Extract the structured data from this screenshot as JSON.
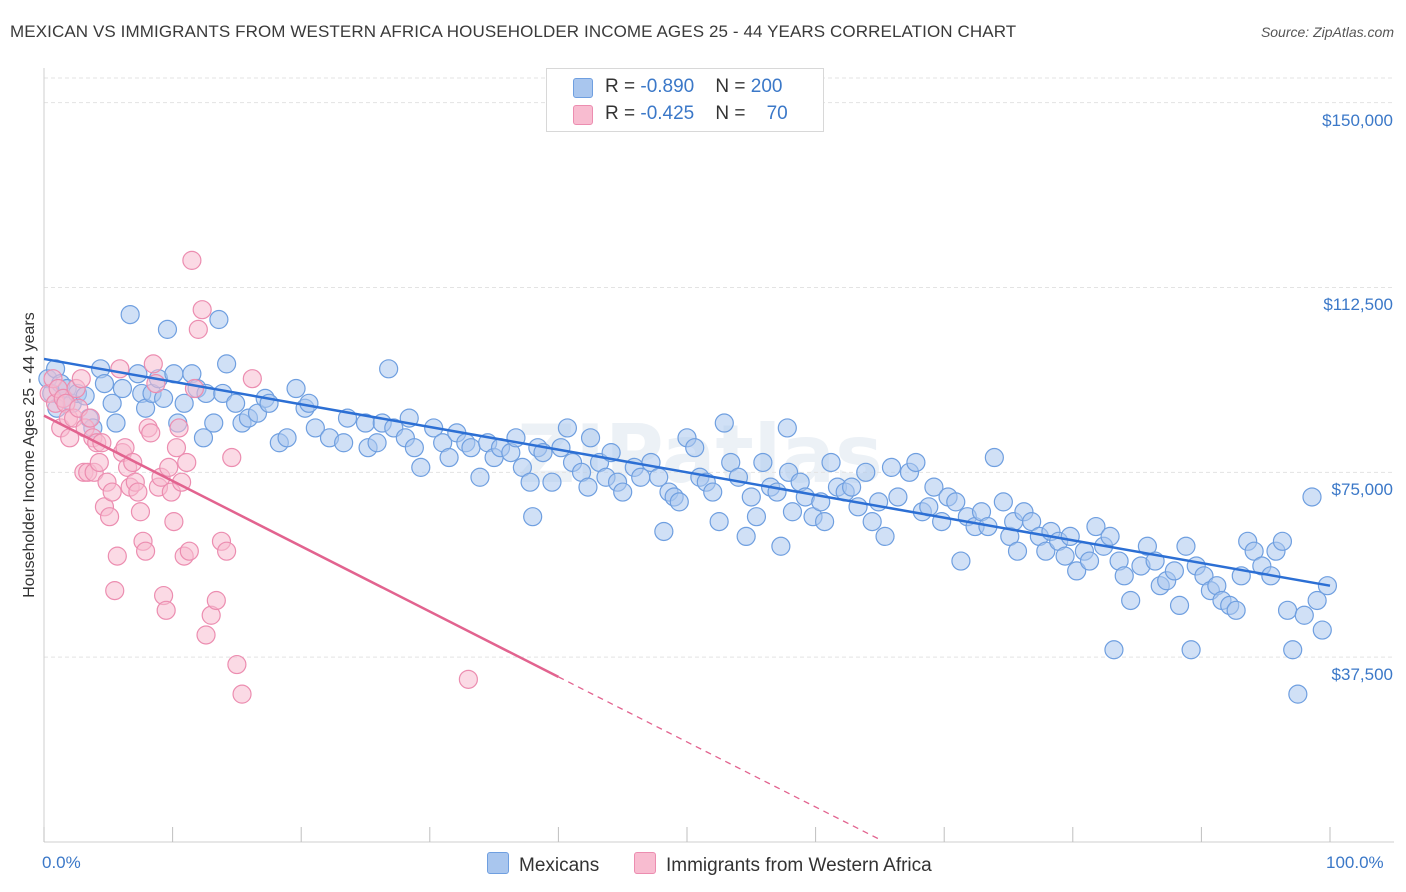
{
  "title": "MEXICAN VS IMMIGRANTS FROM WESTERN AFRICA HOUSEHOLDER INCOME AGES 25 - 44 YEARS CORRELATION CHART",
  "source": "Source: ZipAtlas.com",
  "watermark": "ZIPatlas",
  "colors": {
    "blue_fill": "#a9c6ee",
    "blue_stroke": "#6f9fe0",
    "blue_line": "#2c6fd4",
    "pink_fill": "#f8bcd0",
    "pink_stroke": "#ec8db0",
    "pink_line": "#e2638f",
    "tick_text": "#3b78c8",
    "grid": "#e3e3e3"
  },
  "legend": {
    "rows": [
      {
        "r_label": "R = ",
        "r_value": "-0.890",
        "n_label": "N = ",
        "n_value": "200"
      },
      {
        "r_label": "R = ",
        "r_value": "-0.425",
        "n_label": "N = ",
        "n_value": "70"
      }
    ]
  },
  "bottom_legend": {
    "mexicans": "Mexicans",
    "immigrants": "Immigrants from Western Africa"
  },
  "chart_data": {
    "type": "scatter",
    "title": "MEXICAN VS IMMIGRANTS FROM WESTERN AFRICA HOUSEHOLDER INCOME AGES 25 - 44 YEARS CORRELATION CHART",
    "xlabel": "",
    "ylabel": "Householder Income Ages 25 - 44 years",
    "xlim": [
      0,
      100
    ],
    "ylim": [
      0,
      155000
    ],
    "x_tick_labels": [
      "0.0%",
      "100.0%"
    ],
    "y_ticks": [
      37500,
      75000,
      112500,
      150000
    ],
    "y_tick_labels": [
      "$37,500",
      "$75,000",
      "$112,500",
      "$150,000"
    ],
    "grid": true,
    "legend_position": "top-center",
    "series": [
      {
        "name": "Mexicans",
        "trend": {
          "x": [
            0,
            100
          ],
          "y": [
            98000,
            52000
          ]
        },
        "points": [
          [
            0.3,
            94000
          ],
          [
            0.6,
            91000
          ],
          [
            0.9,
            96000
          ],
          [
            1.0,
            88000
          ],
          [
            1.3,
            93000
          ],
          [
            1.5,
            90000
          ],
          [
            1.8,
            92000
          ],
          [
            2.2,
            89000
          ],
          [
            2.6,
            91000
          ],
          [
            3.2,
            90500
          ],
          [
            3.5,
            86000
          ],
          [
            3.8,
            84000
          ],
          [
            4.4,
            96000
          ],
          [
            4.7,
            93000
          ],
          [
            5.3,
            89000
          ],
          [
            5.6,
            85000
          ],
          [
            6.1,
            92000
          ],
          [
            6.7,
            107000
          ],
          [
            7.3,
            95000
          ],
          [
            7.6,
            91000
          ],
          [
            7.9,
            88000
          ],
          [
            8.4,
            91000
          ],
          [
            8.9,
            94000
          ],
          [
            9.3,
            90000
          ],
          [
            9.6,
            104000
          ],
          [
            10.1,
            95000
          ],
          [
            10.4,
            85000
          ],
          [
            10.9,
            89000
          ],
          [
            11.5,
            95000
          ],
          [
            11.9,
            92000
          ],
          [
            12.4,
            82000
          ],
          [
            12.6,
            91000
          ],
          [
            13.2,
            85000
          ],
          [
            13.6,
            106000
          ],
          [
            13.9,
            91000
          ],
          [
            14.2,
            97000
          ],
          [
            14.9,
            89000
          ],
          [
            15.4,
            85000
          ],
          [
            15.9,
            86000
          ],
          [
            16.6,
            87000
          ],
          [
            17.2,
            90000
          ],
          [
            17.5,
            89000
          ],
          [
            18.3,
            81000
          ],
          [
            18.9,
            82000
          ],
          [
            19.6,
            92000
          ],
          [
            20.3,
            88000
          ],
          [
            20.6,
            89000
          ],
          [
            21.1,
            84000
          ],
          [
            22.2,
            82000
          ],
          [
            23.3,
            81000
          ],
          [
            23.6,
            86000
          ],
          [
            25.0,
            85000
          ],
          [
            25.2,
            80000
          ],
          [
            25.9,
            81000
          ],
          [
            26.3,
            85000
          ],
          [
            26.8,
            96000
          ],
          [
            27.2,
            84000
          ],
          [
            28.1,
            82000
          ],
          [
            28.4,
            86000
          ],
          [
            28.8,
            80000
          ],
          [
            29.3,
            76000
          ],
          [
            30.3,
            84000
          ],
          [
            31.0,
            81000
          ],
          [
            31.5,
            78000
          ],
          [
            32.1,
            83000
          ],
          [
            32.8,
            81000
          ],
          [
            33.2,
            80000
          ],
          [
            33.9,
            74000
          ],
          [
            34.5,
            81000
          ],
          [
            35.0,
            78000
          ],
          [
            35.5,
            80000
          ],
          [
            36.3,
            79000
          ],
          [
            36.7,
            82000
          ],
          [
            37.2,
            76000
          ],
          [
            37.8,
            73000
          ],
          [
            38.0,
            66000
          ],
          [
            38.4,
            80000
          ],
          [
            38.8,
            79000
          ],
          [
            39.5,
            73000
          ],
          [
            40.2,
            80000
          ],
          [
            40.7,
            84000
          ],
          [
            41.1,
            77000
          ],
          [
            41.8,
            75000
          ],
          [
            42.3,
            72000
          ],
          [
            42.5,
            82000
          ],
          [
            43.2,
            77000
          ],
          [
            43.7,
            74000
          ],
          [
            44.1,
            79000
          ],
          [
            44.6,
            73000
          ],
          [
            45.0,
            71000
          ],
          [
            45.9,
            76000
          ],
          [
            46.4,
            74000
          ],
          [
            47.2,
            77000
          ],
          [
            47.8,
            74000
          ],
          [
            48.2,
            63000
          ],
          [
            48.6,
            71000
          ],
          [
            49.0,
            70000
          ],
          [
            49.4,
            69000
          ],
          [
            50.0,
            82000
          ],
          [
            50.6,
            80000
          ],
          [
            51.0,
            74000
          ],
          [
            51.5,
            73000
          ],
          [
            52.0,
            71000
          ],
          [
            52.5,
            65000
          ],
          [
            52.9,
            85000
          ],
          [
            53.4,
            77000
          ],
          [
            54.0,
            74000
          ],
          [
            54.6,
            62000
          ],
          [
            55.0,
            70000
          ],
          [
            55.4,
            66000
          ],
          [
            55.9,
            77000
          ],
          [
            56.5,
            72000
          ],
          [
            57.0,
            71000
          ],
          [
            57.3,
            60000
          ],
          [
            57.9,
            75000
          ],
          [
            58.2,
            67000
          ],
          [
            58.8,
            73000
          ],
          [
            59.2,
            70000
          ],
          [
            59.8,
            66000
          ],
          [
            60.4,
            69000
          ],
          [
            60.7,
            65000
          ],
          [
            61.2,
            77000
          ],
          [
            61.7,
            72000
          ],
          [
            62.3,
            71000
          ],
          [
            62.8,
            72000
          ],
          [
            63.3,
            68000
          ],
          [
            63.9,
            75000
          ],
          [
            64.4,
            65000
          ],
          [
            64.9,
            69000
          ],
          [
            65.4,
            62000
          ],
          [
            65.9,
            76000
          ],
          [
            66.4,
            70000
          ],
          [
            67.3,
            75000
          ],
          [
            67.8,
            77000
          ],
          [
            68.3,
            67000
          ],
          [
            68.8,
            68000
          ],
          [
            69.2,
            72000
          ],
          [
            69.8,
            65000
          ],
          [
            70.3,
            70000
          ],
          [
            70.9,
            69000
          ],
          [
            71.3,
            57000
          ],
          [
            71.8,
            66000
          ],
          [
            72.4,
            64000
          ],
          [
            72.9,
            67000
          ],
          [
            73.4,
            64000
          ],
          [
            73.9,
            78000
          ],
          [
            74.6,
            69000
          ],
          [
            75.1,
            62000
          ],
          [
            75.4,
            65000
          ],
          [
            75.7,
            59000
          ],
          [
            76.2,
            67000
          ],
          [
            76.8,
            65000
          ],
          [
            77.4,
            62000
          ],
          [
            77.9,
            59000
          ],
          [
            78.3,
            63000
          ],
          [
            78.9,
            61000
          ],
          [
            79.4,
            58000
          ],
          [
            79.8,
            62000
          ],
          [
            80.3,
            55000
          ],
          [
            80.9,
            59000
          ],
          [
            81.3,
            57000
          ],
          [
            81.8,
            64000
          ],
          [
            82.4,
            60000
          ],
          [
            82.9,
            62000
          ],
          [
            83.2,
            39000
          ],
          [
            83.6,
            57000
          ],
          [
            84.0,
            54000
          ],
          [
            84.5,
            49000
          ],
          [
            85.3,
            56000
          ],
          [
            85.8,
            60000
          ],
          [
            86.4,
            57000
          ],
          [
            86.8,
            52000
          ],
          [
            87.3,
            53000
          ],
          [
            87.9,
            55000
          ],
          [
            88.3,
            48000
          ],
          [
            88.8,
            60000
          ],
          [
            89.2,
            39000
          ],
          [
            89.6,
            56000
          ],
          [
            90.2,
            54000
          ],
          [
            90.7,
            51000
          ],
          [
            91.2,
            52000
          ],
          [
            91.6,
            49000
          ],
          [
            92.2,
            48000
          ],
          [
            92.7,
            47000
          ],
          [
            93.1,
            54000
          ],
          [
            93.6,
            61000
          ],
          [
            94.1,
            59000
          ],
          [
            94.7,
            56000
          ],
          [
            95.4,
            54000
          ],
          [
            95.8,
            59000
          ],
          [
            96.3,
            61000
          ],
          [
            96.7,
            47000
          ],
          [
            97.1,
            39000
          ],
          [
            97.5,
            30000
          ],
          [
            98.0,
            46000
          ],
          [
            98.6,
            70000
          ],
          [
            99.0,
            49000
          ],
          [
            99.4,
            43000
          ],
          [
            99.8,
            52000
          ],
          [
            57.8,
            84000
          ]
        ]
      },
      {
        "name": "Immigrants from Western Africa",
        "trend": {
          "x": [
            0,
            40
          ],
          "y": [
            86500,
            33500
          ]
        },
        "trend_dashed": {
          "x": [
            40,
            65
          ],
          "y": [
            33500,
            500
          ]
        },
        "points": [
          [
            0.4,
            91000
          ],
          [
            0.7,
            94000
          ],
          [
            0.9,
            89000
          ],
          [
            1.1,
            92000
          ],
          [
            1.3,
            84000
          ],
          [
            1.5,
            90000
          ],
          [
            1.7,
            89000
          ],
          [
            1.9,
            86000
          ],
          [
            2.0,
            82000
          ],
          [
            2.3,
            86000
          ],
          [
            2.5,
            92000
          ],
          [
            2.7,
            88000
          ],
          [
            2.9,
            94000
          ],
          [
            3.1,
            75000
          ],
          [
            3.2,
            84000
          ],
          [
            3.4,
            75000
          ],
          [
            3.6,
            86000
          ],
          [
            3.8,
            82000
          ],
          [
            3.9,
            75000
          ],
          [
            4.1,
            81000
          ],
          [
            4.3,
            77000
          ],
          [
            4.5,
            81000
          ],
          [
            4.7,
            68000
          ],
          [
            4.9,
            73000
          ],
          [
            5.1,
            66000
          ],
          [
            5.3,
            71000
          ],
          [
            5.5,
            51000
          ],
          [
            5.7,
            58000
          ],
          [
            5.9,
            96000
          ],
          [
            6.1,
            79000
          ],
          [
            6.3,
            80000
          ],
          [
            6.5,
            76000
          ],
          [
            6.7,
            72000
          ],
          [
            6.9,
            77000
          ],
          [
            7.1,
            73000
          ],
          [
            7.3,
            71000
          ],
          [
            7.5,
            67000
          ],
          [
            7.7,
            61000
          ],
          [
            7.9,
            59000
          ],
          [
            8.1,
            84000
          ],
          [
            8.3,
            83000
          ],
          [
            8.5,
            97000
          ],
          [
            8.7,
            93000
          ],
          [
            8.9,
            72000
          ],
          [
            9.1,
            74000
          ],
          [
            9.3,
            50000
          ],
          [
            9.5,
            47000
          ],
          [
            9.7,
            76000
          ],
          [
            9.9,
            71000
          ],
          [
            10.1,
            65000
          ],
          [
            10.3,
            80000
          ],
          [
            10.5,
            84000
          ],
          [
            10.7,
            73000
          ],
          [
            10.9,
            58000
          ],
          [
            11.1,
            77000
          ],
          [
            11.3,
            59000
          ],
          [
            11.5,
            118000
          ],
          [
            11.7,
            92000
          ],
          [
            12.0,
            104000
          ],
          [
            12.3,
            108000
          ],
          [
            12.6,
            42000
          ],
          [
            13.0,
            46000
          ],
          [
            13.4,
            49000
          ],
          [
            13.8,
            61000
          ],
          [
            14.2,
            59000
          ],
          [
            14.6,
            78000
          ],
          [
            15.0,
            36000
          ],
          [
            15.4,
            30000
          ],
          [
            16.2,
            94000
          ],
          [
            33.0,
            33000
          ]
        ]
      }
    ]
  }
}
